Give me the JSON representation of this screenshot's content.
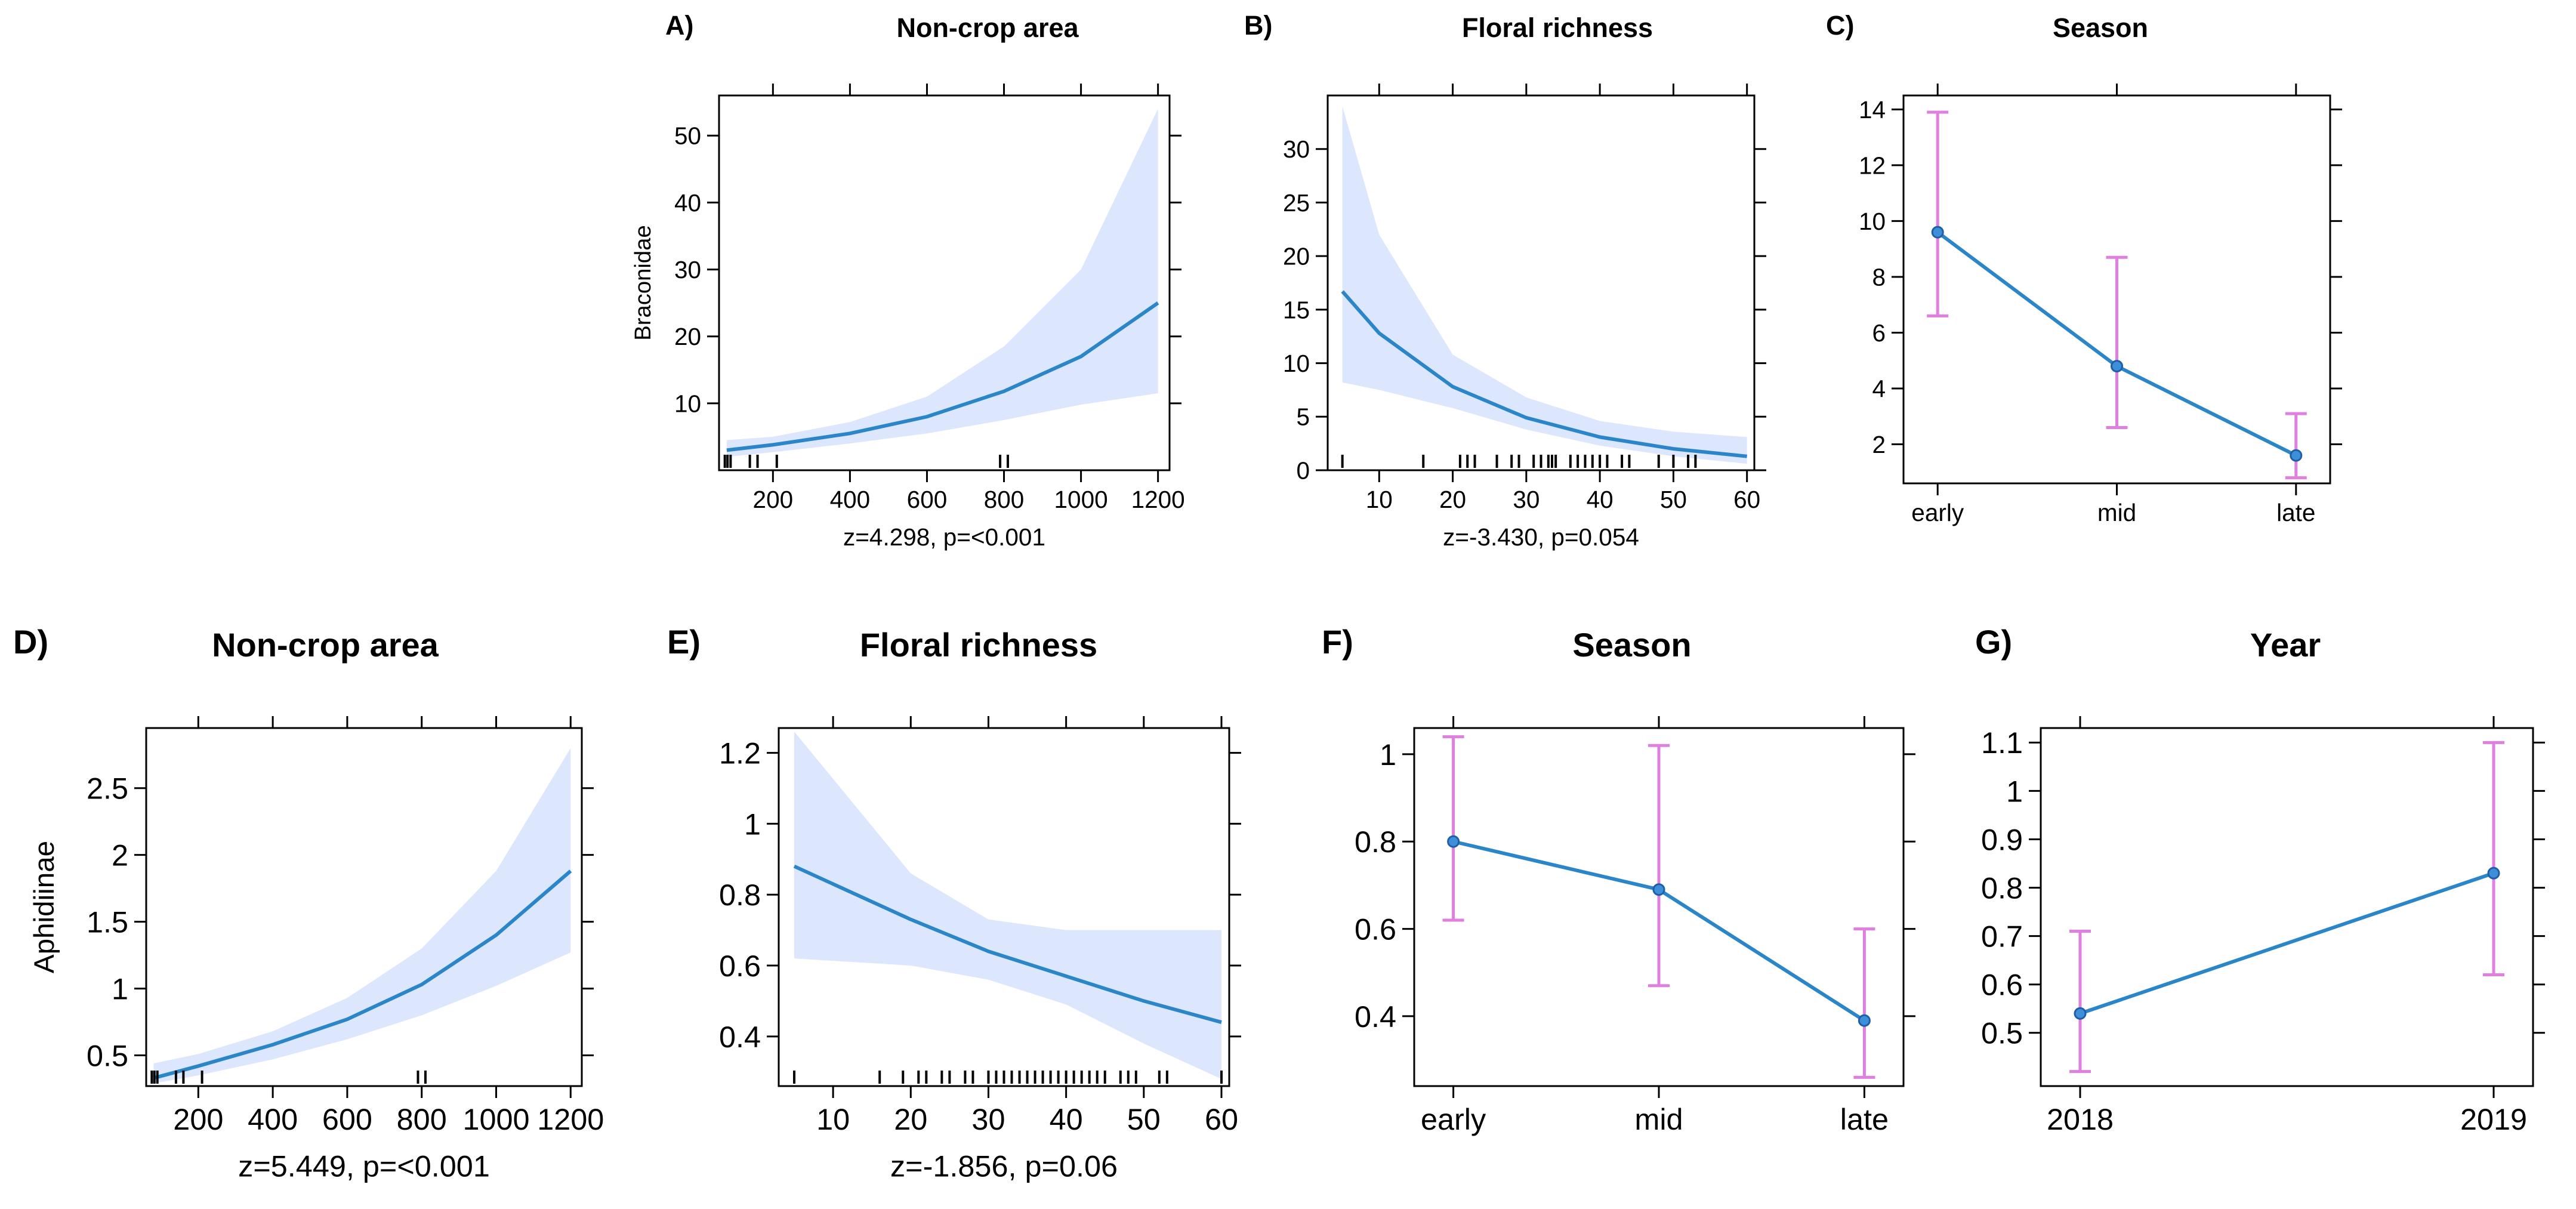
{
  "colors": {
    "fit": "#2a86c9",
    "band": "#dce6fc",
    "errorbar": "#e07fe0",
    "point": "#3d8fd8"
  },
  "chart_data": [
    {
      "id": "A",
      "panel_label": "A)",
      "type": "line",
      "title": "Non-crop area",
      "ylabel": "Braconidae",
      "xlabel": "",
      "stat": "z=4.298, p=<0.001",
      "xlim": [
        60,
        1230
      ],
      "ylim": [
        0,
        56
      ],
      "xticks": [
        200,
        400,
        600,
        800,
        1000,
        1200
      ],
      "yticks": [
        10,
        20,
        30,
        40,
        50
      ],
      "x": [
        80,
        200,
        400,
        600,
        800,
        1000,
        1200
      ],
      "y": [
        3,
        3.8,
        5.5,
        8,
        11.8,
        17,
        25
      ],
      "lower": [
        2,
        2.7,
        4,
        5.5,
        7.5,
        9.8,
        11.5
      ],
      "upper": [
        4.5,
        5,
        7.2,
        11,
        18.5,
        30,
        54
      ],
      "rug": [
        75,
        82,
        90,
        140,
        160,
        210,
        790,
        810
      ]
    },
    {
      "id": "B",
      "panel_label": "B)",
      "type": "line",
      "title": "Floral richness",
      "ylabel": "",
      "xlabel": "",
      "stat": "z=-3.430, p=0.054",
      "xlim": [
        3,
        61
      ],
      "ylim": [
        0,
        35
      ],
      "xticks": [
        10,
        20,
        30,
        40,
        50,
        60
      ],
      "yticks": [
        0,
        5,
        10,
        15,
        20,
        25,
        30
      ],
      "x": [
        5,
        10,
        20,
        30,
        40,
        50,
        60
      ],
      "y": [
        16.7,
        12.8,
        7.8,
        4.9,
        3.1,
        2,
        1.3
      ],
      "lower": [
        8.2,
        7.5,
        5.8,
        3.8,
        2.3,
        1.3,
        0.6
      ],
      "upper": [
        34,
        22,
        10.8,
        6.8,
        4.6,
        3.6,
        3.1
      ],
      "rug": [
        5,
        16,
        21,
        22,
        23,
        26,
        28,
        29,
        31,
        32,
        33,
        33.5,
        34,
        36,
        37,
        38,
        39,
        40,
        41,
        43,
        44,
        48,
        50,
        52,
        53
      ]
    },
    {
      "id": "C",
      "panel_label": "C)",
      "type": "line",
      "title": "Season",
      "ylabel": "",
      "xlabel": "",
      "stat": "",
      "ylim": [
        0.6,
        14.5
      ],
      "yticks": [
        2,
        4,
        6,
        8,
        10,
        12,
        14
      ],
      "categories": [
        "early",
        "mid",
        "late"
      ],
      "values": [
        9.6,
        4.8,
        1.6
      ],
      "lower": [
        6.6,
        2.6,
        0.8
      ],
      "upper": [
        13.9,
        8.7,
        3.1
      ]
    },
    {
      "id": "D",
      "panel_label": "D)",
      "type": "line",
      "title": "Non-crop area",
      "ylabel": "Aphidiinae",
      "xlabel": "",
      "stat": "z=5.449, p=<0.001",
      "xlim": [
        60,
        1230
      ],
      "ylim": [
        0.27,
        2.95
      ],
      "xticks": [
        200,
        400,
        600,
        800,
        1000,
        1200
      ],
      "yticks": [
        0.5,
        1.0,
        1.5,
        2.0,
        2.5
      ],
      "x": [
        80,
        200,
        400,
        600,
        800,
        1000,
        1200
      ],
      "y": [
        0.33,
        0.42,
        0.58,
        0.77,
        1.03,
        1.4,
        1.88
      ],
      "lower": [
        0.29,
        0.35,
        0.47,
        0.62,
        0.8,
        1.02,
        1.27
      ],
      "upper": [
        0.44,
        0.51,
        0.68,
        0.93,
        1.3,
        1.88,
        2.8
      ],
      "rug": [
        75,
        82,
        90,
        140,
        160,
        210,
        790,
        810
      ]
    },
    {
      "id": "E",
      "panel_label": "E)",
      "type": "line",
      "title": "Floral richness",
      "ylabel": "",
      "xlabel": "",
      "stat": "z=-1.856, p=0.06",
      "xlim": [
        3,
        61
      ],
      "ylim": [
        0.26,
        1.27
      ],
      "xticks": [
        10,
        20,
        30,
        40,
        50,
        60
      ],
      "yticks": [
        0.4,
        0.6,
        0.8,
        1.0,
        1.2
      ],
      "x": [
        5,
        20,
        30,
        40,
        50,
        60
      ],
      "y": [
        0.88,
        0.73,
        0.64,
        0.57,
        0.5,
        0.44
      ],
      "lower": [
        0.62,
        0.6,
        0.56,
        0.49,
        0.38,
        0.28
      ],
      "upper": [
        1.26,
        0.86,
        0.73,
        0.7,
        0.7,
        0.7
      ],
      "rug": [
        5,
        16,
        19,
        21,
        22,
        24,
        25,
        27,
        28,
        30,
        31,
        32,
        33,
        34,
        35,
        36,
        37,
        38,
        39,
        40,
        41,
        42,
        43,
        44,
        45,
        47,
        48,
        49,
        52,
        53,
        60
      ]
    },
    {
      "id": "F",
      "panel_label": "F)",
      "type": "line",
      "title": "Season",
      "ylabel": "",
      "xlabel": "",
      "stat": "",
      "ylim": [
        0.24,
        1.06
      ],
      "yticks": [
        0.4,
        0.6,
        0.8,
        1.0
      ],
      "categories": [
        "early",
        "mid",
        "late"
      ],
      "values": [
        0.8,
        0.69,
        0.39
      ],
      "lower": [
        0.62,
        0.47,
        0.26
      ],
      "upper": [
        1.04,
        1.02,
        0.6
      ]
    },
    {
      "id": "G",
      "panel_label": "G)",
      "type": "line",
      "title": "Year",
      "ylabel": "",
      "xlabel": "",
      "stat": "",
      "ylim": [
        0.39,
        1.13
      ],
      "yticks": [
        0.5,
        0.6,
        0.7,
        0.8,
        0.9,
        1.0,
        1.1
      ],
      "categories": [
        "2018",
        "2019"
      ],
      "values": [
        0.54,
        0.83
      ],
      "lower": [
        0.42,
        0.62
      ],
      "upper": [
        0.71,
        1.1
      ]
    }
  ]
}
